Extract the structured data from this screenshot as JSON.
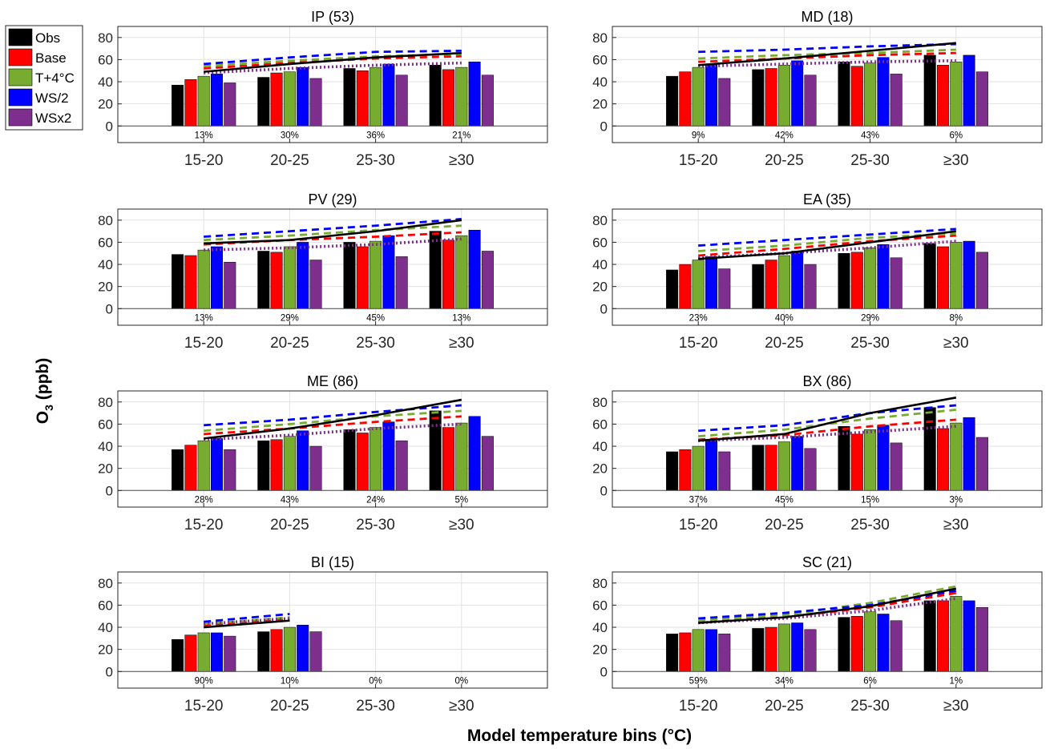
{
  "figure": {
    "ylabel_main": "O",
    "ylabel_sub": "3",
    "ylabel_unit": " (ppb)",
    "xlabel": "Model temperature bins (°C)"
  },
  "legend": [
    {
      "label": "Obs",
      "color": "#000000"
    },
    {
      "label": "Base",
      "color": "#ff0000"
    },
    {
      "label": "T+4°C",
      "color": "#77ac30"
    },
    {
      "label": "WS/2",
      "color": "#0000ff"
    },
    {
      "label": "WSx2",
      "color": "#7e2f8e"
    }
  ],
  "chart_data": [
    {
      "type": "bar",
      "title": "IP (53)",
      "categories": [
        "15-20",
        "20-25",
        "25-30",
        "≥30"
      ],
      "ylim": [
        -15,
        90
      ],
      "yticks": [
        0,
        20,
        40,
        60,
        80
      ],
      "percents": [
        "13%",
        "30%",
        "36%",
        "21%"
      ],
      "series": [
        {
          "name": "Obs",
          "values": [
            37,
            44,
            52,
            55
          ],
          "line": [
            49,
            56,
            62,
            66
          ]
        },
        {
          "name": "Base",
          "values": [
            42,
            48,
            50,
            51
          ],
          "line": [
            52,
            57,
            61,
            63
          ]
        },
        {
          "name": "T+4°C",
          "values": [
            45,
            49,
            53,
            53
          ],
          "line": [
            54,
            59,
            63,
            65
          ]
        },
        {
          "name": "WS/2",
          "values": [
            47,
            53,
            56,
            58
          ],
          "line": [
            56,
            62,
            67,
            68
          ]
        },
        {
          "name": "WSx2",
          "values": [
            39,
            43,
            46,
            46
          ],
          "line": [
            48,
            52,
            55,
            57
          ]
        }
      ]
    },
    {
      "type": "bar",
      "title": "MD (18)",
      "categories": [
        "15-20",
        "20-25",
        "25-30",
        "≥30"
      ],
      "ylim": [
        -15,
        90
      ],
      "yticks": [
        0,
        20,
        40,
        60,
        80
      ],
      "percents": [
        "9%",
        "42%",
        "43%",
        "6%"
      ],
      "series": [
        {
          "name": "Obs",
          "values": [
            45,
            51,
            58,
            64
          ],
          "line": [
            55,
            61,
            68,
            75
          ]
        },
        {
          "name": "Base",
          "values": [
            49,
            52,
            54,
            55
          ],
          "line": [
            58,
            61,
            64,
            66
          ]
        },
        {
          "name": "T+4°C",
          "values": [
            53,
            55,
            57,
            58
          ],
          "line": [
            61,
            64,
            66,
            69
          ]
        },
        {
          "name": "WS/2",
          "values": [
            56,
            59,
            62,
            64
          ],
          "line": [
            67,
            69,
            72,
            74
          ]
        },
        {
          "name": "WSx2",
          "values": [
            43,
            46,
            47,
            49
          ],
          "line": [
            54,
            56,
            58,
            59
          ]
        }
      ]
    },
    {
      "type": "bar",
      "title": "PV (29)",
      "categories": [
        "15-20",
        "20-25",
        "25-30",
        "≥30"
      ],
      "ylim": [
        -15,
        90
      ],
      "yticks": [
        0,
        20,
        40,
        60,
        80
      ],
      "percents": [
        "13%",
        "29%",
        "45%",
        "13%"
      ],
      "series": [
        {
          "name": "Obs",
          "values": [
            49,
            52,
            60,
            70
          ],
          "line": [
            59,
            62,
            70,
            80
          ]
        },
        {
          "name": "Base",
          "values": [
            48,
            51,
            56,
            62
          ],
          "line": [
            58,
            62,
            65,
            69
          ]
        },
        {
          "name": "T+4°C",
          "values": [
            53,
            56,
            61,
            66
          ],
          "line": [
            62,
            66,
            71,
            75
          ]
        },
        {
          "name": "WS/2",
          "values": [
            56,
            60,
            66,
            71
          ],
          "line": [
            65,
            70,
            75,
            81
          ]
        },
        {
          "name": "WSx2",
          "values": [
            42,
            44,
            47,
            52
          ],
          "line": [
            53,
            55,
            58,
            63
          ]
        }
      ]
    },
    {
      "type": "bar",
      "title": "EA (35)",
      "categories": [
        "15-20",
        "20-25",
        "25-30",
        "≥30"
      ],
      "ylim": [
        -15,
        90
      ],
      "yticks": [
        0,
        20,
        40,
        60,
        80
      ],
      "percents": [
        "23%",
        "40%",
        "29%",
        "8%"
      ],
      "series": [
        {
          "name": "Obs",
          "values": [
            35,
            40,
            50,
            59
          ],
          "line": [
            45,
            50,
            60,
            70
          ]
        },
        {
          "name": "Base",
          "values": [
            40,
            44,
            51,
            56
          ],
          "line": [
            48,
            54,
            61,
            66
          ]
        },
        {
          "name": "T+4°C",
          "values": [
            44,
            48,
            55,
            60
          ],
          "line": [
            52,
            57,
            64,
            68
          ]
        },
        {
          "name": "WS/2",
          "values": [
            47,
            52,
            58,
            61
          ],
          "line": [
            57,
            62,
            67,
            72
          ]
        },
        {
          "name": "WSx2",
          "values": [
            36,
            40,
            46,
            51
          ],
          "line": [
            46,
            50,
            55,
            61
          ]
        }
      ]
    },
    {
      "type": "bar",
      "title": "ME (86)",
      "categories": [
        "15-20",
        "20-25",
        "25-30",
        "≥30"
      ],
      "ylim": [
        -15,
        90
      ],
      "yticks": [
        0,
        20,
        40,
        60,
        80
      ],
      "percents": [
        "28%",
        "43%",
        "24%",
        "5%"
      ],
      "series": [
        {
          "name": "Obs",
          "values": [
            37,
            45,
            55,
            72
          ],
          "line": [
            47,
            56,
            68,
            82
          ]
        },
        {
          "name": "Base",
          "values": [
            41,
            46,
            52,
            57
          ],
          "line": [
            51,
            56,
            62,
            67
          ]
        },
        {
          "name": "T+4°C",
          "values": [
            45,
            49,
            57,
            61
          ],
          "line": [
            54,
            60,
            67,
            72
          ]
        },
        {
          "name": "WS/2",
          "values": [
            47,
            54,
            62,
            67
          ],
          "line": [
            59,
            64,
            71,
            77
          ]
        },
        {
          "name": "WSx2",
          "values": [
            37,
            40,
            45,
            49
          ],
          "line": [
            46,
            50,
            56,
            60
          ]
        }
      ]
    },
    {
      "type": "bar",
      "title": "BX (86)",
      "categories": [
        "15-20",
        "20-25",
        "25-30",
        "≥30"
      ],
      "ylim": [
        -15,
        90
      ],
      "yticks": [
        0,
        20,
        40,
        60,
        80
      ],
      "percents": [
        "37%",
        "45%",
        "15%",
        "3%"
      ],
      "series": [
        {
          "name": "Obs",
          "values": [
            35,
            41,
            58,
            75
          ],
          "line": [
            45,
            51,
            70,
            84
          ]
        },
        {
          "name": "Base",
          "values": [
            37,
            41,
            51,
            56
          ],
          "line": [
            46,
            50,
            58,
            64
          ]
        },
        {
          "name": "T+4°C",
          "values": [
            40,
            44,
            55,
            61
          ],
          "line": [
            49,
            55,
            65,
            73
          ]
        },
        {
          "name": "WS/2",
          "values": [
            45,
            49,
            59,
            66
          ],
          "line": [
            54,
            59,
            70,
            77
          ]
        },
        {
          "name": "WSx2",
          "values": [
            35,
            38,
            43,
            48
          ],
          "line": [
            45,
            48,
            53,
            58
          ]
        }
      ]
    },
    {
      "type": "bar",
      "title": "BI (15)",
      "categories": [
        "15-20",
        "20-25",
        "25-30",
        "≥30"
      ],
      "ylim": [
        -15,
        90
      ],
      "yticks": [
        0,
        20,
        40,
        60,
        80
      ],
      "percents": [
        "90%",
        "10%",
        "0%",
        "0%"
      ],
      "series": [
        {
          "name": "Obs",
          "values": [
            29,
            36,
            null,
            null
          ],
          "line": [
            40,
            46,
            null,
            null
          ]
        },
        {
          "name": "Base",
          "values": [
            33,
            38,
            null,
            null
          ],
          "line": [
            42,
            47,
            null,
            null
          ]
        },
        {
          "name": "T+4°C",
          "values": [
            35,
            40,
            null,
            null
          ],
          "line": [
            43,
            49,
            null,
            null
          ]
        },
        {
          "name": "WS/2",
          "values": [
            35,
            42,
            null,
            null
          ],
          "line": [
            45,
            52,
            null,
            null
          ]
        },
        {
          "name": "WSx2",
          "values": [
            32,
            36,
            null,
            null
          ],
          "line": [
            43,
            48,
            null,
            null
          ]
        }
      ]
    },
    {
      "type": "bar",
      "title": "SC (21)",
      "categories": [
        "15-20",
        "20-25",
        "25-30",
        "≥30"
      ],
      "ylim": [
        -15,
        90
      ],
      "yticks": [
        0,
        20,
        40,
        60,
        80
      ],
      "percents": [
        "59%",
        "34%",
        "6%",
        "1%"
      ],
      "series": [
        {
          "name": "Obs",
          "values": [
            34,
            39,
            49,
            64
          ],
          "line": [
            44,
            49,
            59,
            75
          ]
        },
        {
          "name": "Base",
          "values": [
            35,
            40,
            50,
            64
          ],
          "line": [
            45,
            49,
            58,
            71
          ]
        },
        {
          "name": "T+4°C",
          "values": [
            38,
            43,
            54,
            68
          ],
          "line": [
            46,
            51,
            62,
            77
          ]
        },
        {
          "name": "WS/2",
          "values": [
            38,
            44,
            52,
            64
          ],
          "line": [
            48,
            53,
            60,
            73
          ]
        },
        {
          "name": "WSx2",
          "values": [
            34,
            38,
            46,
            58
          ],
          "line": [
            44,
            48,
            55,
            66
          ]
        }
      ]
    }
  ]
}
